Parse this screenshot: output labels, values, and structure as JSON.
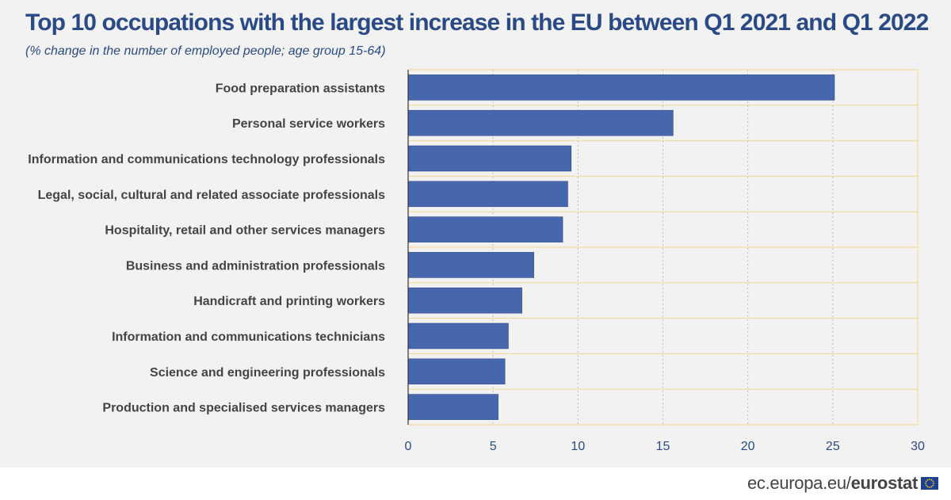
{
  "header": {
    "title": "Top 10 occupations with the largest increase in the EU between Q1 2021 and Q1 2022",
    "subtitle": "(% change in the number of employed people; age group 15-64)"
  },
  "footer": {
    "source_prefix": "ec.europa.eu/",
    "source_brand": "eurostat",
    "flag_icon": "eu-flag-icon"
  },
  "colors": {
    "bar": "#4666ad",
    "title": "#2a4a87",
    "grid_border": "#f2d58c",
    "axis_text": "#2a4a87",
    "background": "#f2f2f2"
  },
  "chart_data": {
    "type": "bar",
    "orientation": "horizontal",
    "title": "Top 10 occupations with the largest increase in the EU between Q1 2021 and Q1 2022",
    "subtitle": "(% change in the number of employed people; age group 15-64)",
    "xlabel": "",
    "ylabel": "",
    "xlim": [
      0,
      30
    ],
    "xticks": [
      0,
      5,
      10,
      15,
      20,
      25,
      30
    ],
    "grid": true,
    "legend": "none",
    "categories": [
      "Food preparation assistants",
      "Personal service workers",
      "Information and communications technology professionals",
      "Legal, social, cultural and related associate professionals",
      "Hospitality, retail and other services managers",
      "Business and administration professionals",
      "Handicraft and printing workers",
      "Information and communications technicians",
      "Science and engineering professionals",
      "Production and specialised services managers"
    ],
    "values": [
      25.1,
      15.6,
      9.6,
      9.4,
      9.1,
      7.4,
      6.7,
      5.9,
      5.7,
      5.3
    ]
  }
}
